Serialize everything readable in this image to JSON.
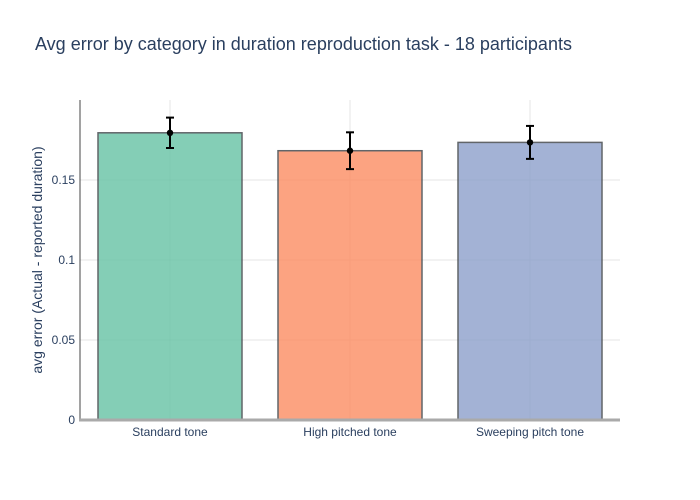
{
  "chart_data": {
    "type": "bar",
    "title": "Avg error by category in duration reproduction task - 18 participants",
    "xlabel": "",
    "ylabel": "avg error (Actual - reported duration)",
    "categories": [
      "Standard tone",
      "High pitched tone",
      "Sweeping pitch tone"
    ],
    "values": [
      0.1795,
      0.1683,
      0.1735
    ],
    "error": [
      0.0095,
      0.0115,
      0.0103
    ],
    "ylim": [
      0,
      0.2
    ],
    "yticks": [
      0,
      0.05,
      0.1,
      0.15
    ],
    "ytick_labels": [
      "0",
      "0.05",
      "0.1",
      "0.15"
    ],
    "colors": [
      "#66c2a5",
      "#fc8d62",
      "#8da0cb"
    ],
    "grid": true,
    "legend": "none"
  }
}
